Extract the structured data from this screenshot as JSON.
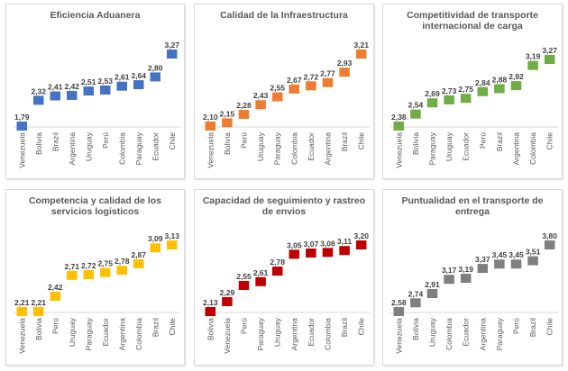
{
  "chart_data": [
    {
      "type": "bar",
      "subtype": "waterfall-step",
      "title": "Eficiencia Aduanera",
      "color": "#4472c4",
      "categories": [
        "Venezuela",
        "Bolivia",
        "Brazil",
        "Argentina",
        "Uruguay",
        "Perú",
        "Colombia",
        "Paraguay",
        "Ecuador",
        "Chile"
      ],
      "values": [
        1.79,
        2.32,
        2.41,
        2.42,
        2.51,
        2.53,
        2.61,
        2.64,
        2.8,
        3.27
      ],
      "labels": [
        "1,79",
        "2,32",
        "2,41",
        "2,42",
        "2,51",
        "2,53",
        "2,61",
        "2,64",
        "2,80",
        "3,27"
      ],
      "xlabel": "",
      "ylabel": "",
      "grid": false,
      "legend": "none"
    },
    {
      "type": "bar",
      "subtype": "waterfall-step",
      "title": "Calidad de la Infraestructura",
      "color": "#ed7d31",
      "categories": [
        "Venezuela",
        "Bolivia",
        "Perú",
        "Uruguay",
        "Paraguay",
        "Colombia",
        "Ecuador",
        "Argentina",
        "Brazil",
        "Chile"
      ],
      "values": [
        2.1,
        2.15,
        2.28,
        2.43,
        2.55,
        2.67,
        2.72,
        2.77,
        2.93,
        3.21
      ],
      "labels": [
        "2,10",
        "2,15",
        "2,28",
        "2,43",
        "2,55",
        "2,67",
        "2,72",
        "2,77",
        "2,93",
        "3,21"
      ],
      "xlabel": "",
      "ylabel": "",
      "grid": false,
      "legend": "none"
    },
    {
      "type": "bar",
      "subtype": "waterfall-step",
      "title": "Competitividad de transporte internacional de carga",
      "title_lines": [
        "Competitividad de transporte",
        "internacional de carga"
      ],
      "color": "#70ad47",
      "categories": [
        "Venezuela",
        "Bolivia",
        "Paraguay",
        "Uruguay",
        "Ecuador",
        "Perú",
        "Brazil",
        "Argentina",
        "Colombia",
        "Chile"
      ],
      "values": [
        2.38,
        2.54,
        2.69,
        2.73,
        2.75,
        2.84,
        2.88,
        2.92,
        3.19,
        3.27
      ],
      "labels": [
        "2,38",
        "2,54",
        "2,69",
        "2,73",
        "2,75",
        "2,84",
        "2,88",
        "2,92",
        "3,19",
        "3,27"
      ],
      "xlabel": "",
      "ylabel": "",
      "grid": false,
      "legend": "none"
    },
    {
      "type": "bar",
      "subtype": "waterfall-step",
      "title": "Competencia y calidad de los servicios logisticos",
      "title_lines": [
        "Competencia y calidad de los",
        "servicios logisticos"
      ],
      "color": "#ffc000",
      "categories": [
        "Venezuela",
        "Bolivia",
        "Perú",
        "Uruguay",
        "Paraguay",
        "Ecuador",
        "Argentina",
        "Colombia",
        "Brazil",
        "Chile"
      ],
      "values": [
        2.21,
        2.21,
        2.42,
        2.71,
        2.72,
        2.75,
        2.78,
        2.87,
        3.09,
        3.13
      ],
      "labels": [
        "2,21",
        "2,21",
        "2,42",
        "2,71",
        "2,72",
        "2,75",
        "2,78",
        "2,87",
        "3,09",
        "3,13"
      ],
      "xlabel": "",
      "ylabel": "",
      "grid": false,
      "legend": "none"
    },
    {
      "type": "bar",
      "subtype": "waterfall-step",
      "title": "Capacidad de seguimiento y rastreo de envios",
      "title_lines": [
        "Capacidad de seguimiento y rastreo",
        "de envios"
      ],
      "color": "#c00000",
      "categories": [
        "Bolivia",
        "Venezuela",
        "Perú",
        "Paraguay",
        "Uruguay",
        "Argentina",
        "Ecuador",
        "Colombia",
        "Brazil",
        "Chile"
      ],
      "values": [
        2.13,
        2.29,
        2.55,
        2.61,
        2.78,
        3.05,
        3.07,
        3.08,
        3.11,
        3.2
      ],
      "labels": [
        "2,13",
        "2,29",
        "2,55",
        "2,61",
        "2,78",
        "3,05",
        "3,07",
        "3,08",
        "3,11",
        "3,20"
      ],
      "xlabel": "",
      "ylabel": "",
      "grid": false,
      "legend": "none"
    },
    {
      "type": "bar",
      "subtype": "waterfall-step",
      "title": "Puntualidad en el transporte de entrega",
      "title_lines": [
        "Puntualidad en el transporte de",
        "entrega"
      ],
      "color": "#7f7f7f",
      "categories": [
        "Venezuela",
        "Bolivia",
        "Uruguay",
        "Colombia",
        "Ecuador",
        "Argentina",
        "Paraguay",
        "Perú",
        "Brazil",
        "Chile"
      ],
      "values": [
        2.58,
        2.74,
        2.91,
        3.17,
        3.19,
        3.37,
        3.45,
        3.45,
        3.51,
        3.8
      ],
      "labels": [
        "2,58",
        "2,74",
        "2,91",
        "3,17",
        "3,19",
        "3,37",
        "3,45",
        "3,45",
        "3,51",
        "3,80"
      ],
      "xlabel": "",
      "ylabel": "",
      "grid": false,
      "legend": "none"
    }
  ]
}
